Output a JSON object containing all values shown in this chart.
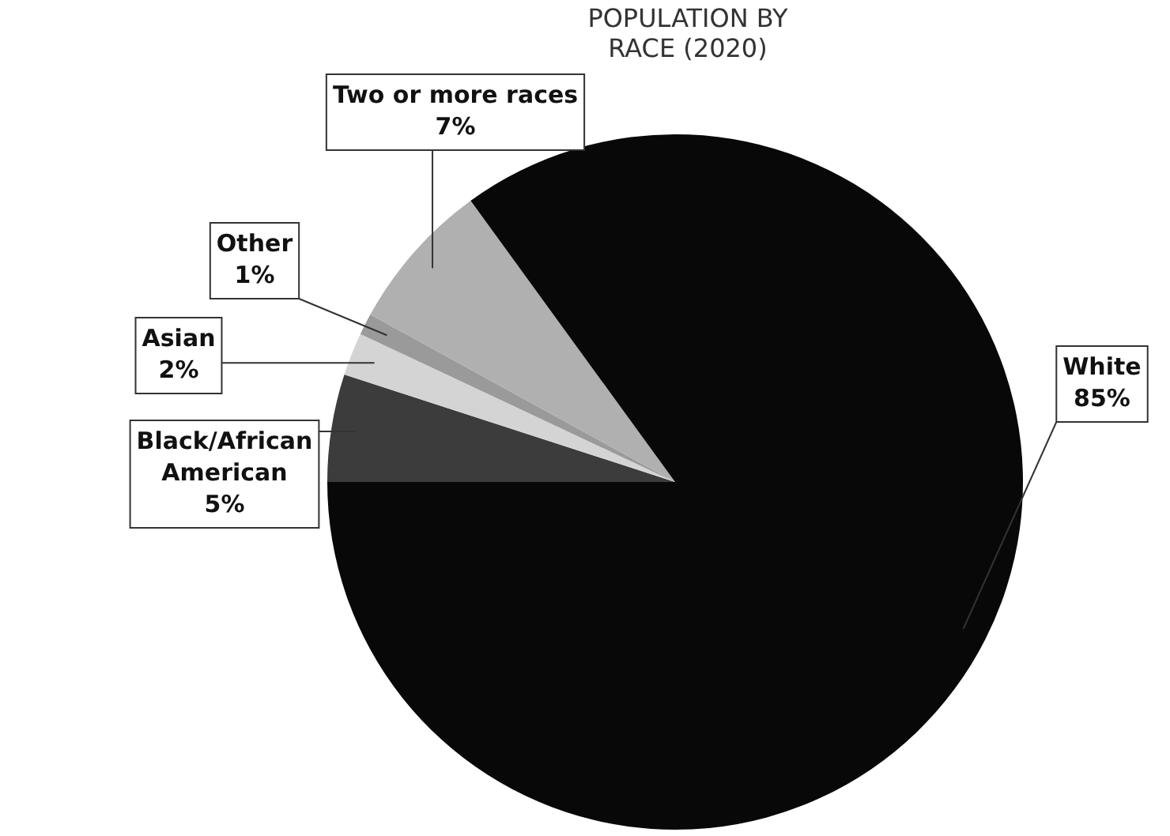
{
  "chart_data": {
    "type": "pie",
    "title": "POPULATION BY RACE (2020)",
    "categories": [
      "Black/African American",
      "Asian",
      "Other",
      "Two or more races",
      "White"
    ],
    "values": [
      5,
      2,
      1,
      7,
      85
    ],
    "value_labels": [
      "5%",
      "2%",
      "1%",
      "7%",
      "85%"
    ],
    "colors": [
      "#3c3c3c",
      "#d4d4d4",
      "#9a9a9a",
      "#b0b0b0",
      "#080808"
    ],
    "legend": false
  }
}
